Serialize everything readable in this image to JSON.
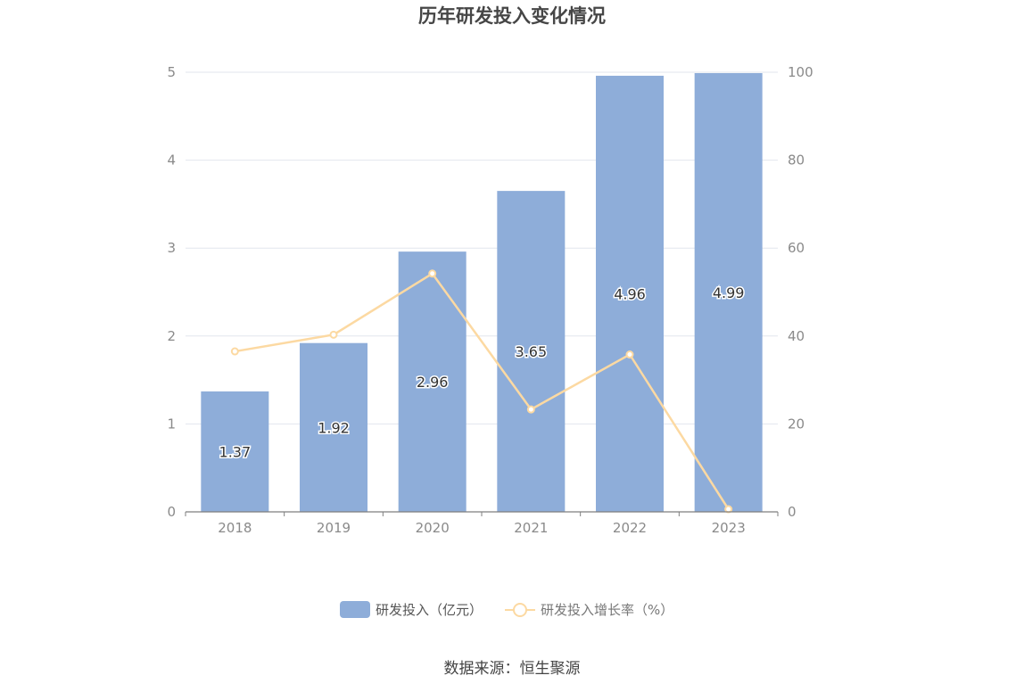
{
  "chart_data": {
    "type": "bar",
    "title": "历年研发投入变化情况",
    "categories": [
      "2018",
      "2019",
      "2020",
      "2021",
      "2022",
      "2023"
    ],
    "series": [
      {
        "name": "研发投入（亿元）",
        "type": "bar",
        "axis": "left",
        "values": [
          1.37,
          1.92,
          2.96,
          3.65,
          4.96,
          4.99
        ],
        "color": "#8eadd9"
      },
      {
        "name": "研发投入增长率（%）",
        "type": "line",
        "axis": "right",
        "values": [
          36.5,
          40.3,
          54.2,
          23.3,
          35.8,
          0.6
        ],
        "color": "#fcd9a2"
      }
    ],
    "ylim_left": [
      0,
      5
    ],
    "yticks_left": [
      "0",
      "1",
      "2",
      "3",
      "4",
      "5"
    ],
    "ylim_right": [
      0,
      100
    ],
    "yticks_right": [
      "0",
      "20",
      "40",
      "60",
      "80",
      "100"
    ],
    "grid": true,
    "legend": "bottom"
  },
  "source": "数据来源：恒生聚源"
}
